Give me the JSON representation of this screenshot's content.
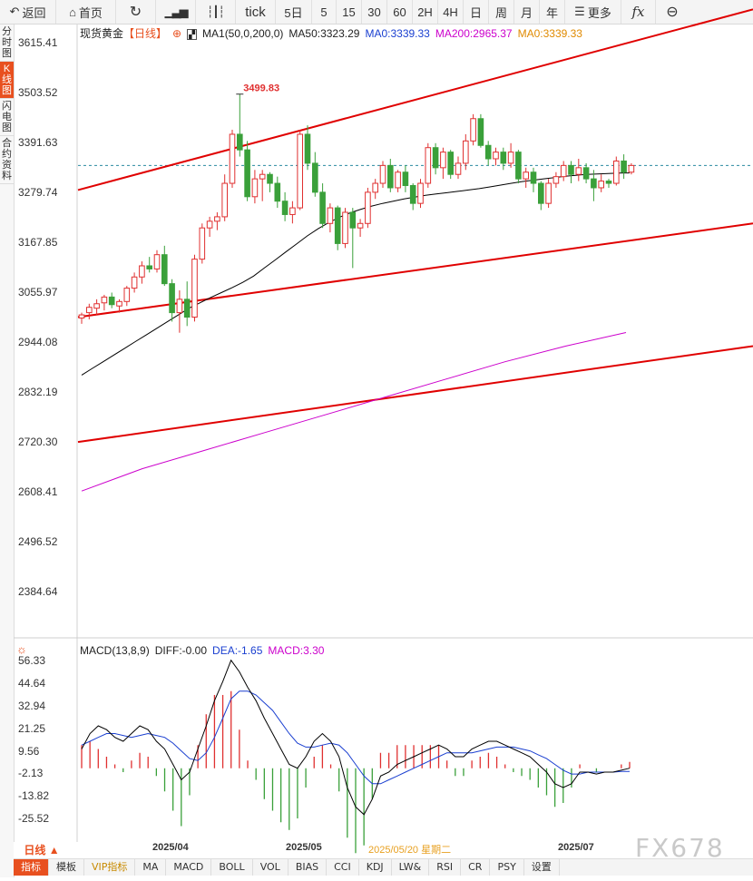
{
  "toolbar": {
    "back": "返回",
    "home": "首页",
    "tick": "tick",
    "periods": [
      "5日",
      "5",
      "15",
      "30",
      "60",
      "2H",
      "4H",
      "日",
      "周",
      "月",
      "年"
    ],
    "more": "更多"
  },
  "sidebar": [
    "分时图",
    "K线图",
    "闪电图",
    "合约资料"
  ],
  "legend": {
    "symbol": "现货黄金",
    "period": "【日线】",
    "ma1": "MA1(50,0,200,0)",
    "ma50": "MA50:3323.29",
    "ma0a": "MA0:3339.33",
    "ma200": "MA200:2965.37",
    "ma0b": "MA0:3339.33"
  },
  "colors": {
    "up": "#e03030",
    "down": "#3aa03a",
    "ma50": "#000000",
    "ma200": "#cc00cc",
    "channel": "#e00000",
    "dea": "#1a3fd0",
    "macd": "#cc00cc"
  },
  "price_axis": [
    "3615.41",
    "3503.52",
    "3391.63",
    "3279.74",
    "3167.85",
    "3055.97",
    "2944.08",
    "2832.19",
    "2720.30",
    "2608.41",
    "2496.52",
    "2384.64"
  ],
  "peak_label": "3499.83",
  "macd_legend": {
    "name": "MACD(13,8,9)",
    "diff": "DIFF:-0.00",
    "dea": "DEA:-1.65",
    "macd": "MACD:3.30"
  },
  "macd_axis": [
    "56.33",
    "44.64",
    "32.94",
    "21.25",
    "9.56",
    "-2.13",
    "-13.82",
    "-25.52"
  ],
  "x_labels": [
    "2025/04",
    "2025/05",
    "2025/05/20 星期二",
    "2025/07"
  ],
  "period_tab": "日线 ▲",
  "bottom_tabs": [
    "指标",
    "模板",
    "VIP指标",
    "MA",
    "MACD",
    "BOLL",
    "VOL",
    "BIAS",
    "CCI",
    "KDJ",
    "LW&",
    "RSI",
    "CR",
    "PSY",
    "设置"
  ],
  "watermark": "FX678",
  "chart_data": {
    "type": "candlestick",
    "title": "现货黄金 日线",
    "ylim": [
      2330,
      3660
    ],
    "candles": [
      [
        2998,
        3010,
        2985,
        3005
      ],
      [
        3010,
        3030,
        2995,
        3022
      ],
      [
        3020,
        3040,
        3005,
        3030
      ],
      [
        3032,
        3050,
        3015,
        3045
      ],
      [
        3045,
        3055,
        3020,
        3028
      ],
      [
        3025,
        3040,
        3010,
        3035
      ],
      [
        3035,
        3070,
        3025,
        3065
      ],
      [
        3065,
        3100,
        3055,
        3090
      ],
      [
        3090,
        3125,
        3075,
        3115
      ],
      [
        3115,
        3135,
        3100,
        3108
      ],
      [
        3108,
        3150,
        3100,
        3140
      ],
      [
        3140,
        3160,
        3070,
        3075
      ],
      [
        3075,
        3085,
        2990,
        3010
      ],
      [
        3010,
        3060,
        2965,
        3040
      ],
      [
        3040,
        3080,
        2980,
        3000
      ],
      [
        3000,
        3140,
        2990,
        3130
      ],
      [
        3130,
        3210,
        3120,
        3200
      ],
      [
        3200,
        3225,
        3180,
        3215
      ],
      [
        3215,
        3235,
        3195,
        3225
      ],
      [
        3225,
        3320,
        3215,
        3300
      ],
      [
        3300,
        3420,
        3290,
        3410
      ],
      [
        3410,
        3500,
        3360,
        3375
      ],
      [
        3375,
        3395,
        3260,
        3270
      ],
      [
        3270,
        3330,
        3255,
        3310
      ],
      [
        3310,
        3330,
        3260,
        3320
      ],
      [
        3320,
        3325,
        3280,
        3300
      ],
      [
        3300,
        3315,
        3245,
        3260
      ],
      [
        3260,
        3280,
        3215,
        3230
      ],
      [
        3230,
        3260,
        3210,
        3245
      ],
      [
        3245,
        3420,
        3240,
        3410
      ],
      [
        3410,
        3430,
        3330,
        3345
      ],
      [
        3345,
        3370,
        3270,
        3280
      ],
      [
        3280,
        3300,
        3200,
        3210
      ],
      [
        3210,
        3255,
        3190,
        3245
      ],
      [
        3245,
        3250,
        3150,
        3165
      ],
      [
        3165,
        3245,
        3155,
        3235
      ],
      [
        3235,
        3245,
        3110,
        3200
      ],
      [
        3200,
        3220,
        3180,
        3210
      ],
      [
        3210,
        3290,
        3200,
        3280
      ],
      [
        3280,
        3310,
        3265,
        3300
      ],
      [
        3300,
        3350,
        3290,
        3340
      ],
      [
        3340,
        3355,
        3280,
        3290
      ],
      [
        3290,
        3330,
        3280,
        3325
      ],
      [
        3325,
        3340,
        3280,
        3295
      ],
      [
        3295,
        3300,
        3240,
        3255
      ],
      [
        3255,
        3310,
        3245,
        3300
      ],
      [
        3300,
        3390,
        3290,
        3380
      ],
      [
        3380,
        3390,
        3320,
        3335
      ],
      [
        3335,
        3380,
        3310,
        3370
      ],
      [
        3370,
        3375,
        3310,
        3320
      ],
      [
        3320,
        3360,
        3310,
        3345
      ],
      [
        3345,
        3410,
        3330,
        3395
      ],
      [
        3395,
        3455,
        3385,
        3445
      ],
      [
        3445,
        3455,
        3380,
        3385
      ],
      [
        3385,
        3395,
        3340,
        3355
      ],
      [
        3355,
        3380,
        3340,
        3370
      ],
      [
        3370,
        3380,
        3330,
        3345
      ],
      [
        3345,
        3390,
        3335,
        3370
      ],
      [
        3370,
        3375,
        3300,
        3310
      ],
      [
        3310,
        3335,
        3290,
        3325
      ],
      [
        3325,
        3335,
        3280,
        3300
      ],
      [
        3300,
        3305,
        3240,
        3255
      ],
      [
        3255,
        3310,
        3245,
        3300
      ],
      [
        3300,
        3325,
        3290,
        3315
      ],
      [
        3315,
        3350,
        3305,
        3340
      ],
      [
        3340,
        3350,
        3300,
        3320
      ],
      [
        3320,
        3355,
        3305,
        3335
      ],
      [
        3335,
        3345,
        3300,
        3310
      ],
      [
        3310,
        3330,
        3260,
        3290
      ],
      [
        3290,
        3320,
        3280,
        3305
      ],
      [
        3305,
        3310,
        3290,
        3300
      ],
      [
        3300,
        3360,
        3295,
        3350
      ],
      [
        3350,
        3365,
        3310,
        3325
      ],
      [
        3325,
        3345,
        3320,
        3340
      ]
    ],
    "ma50": {
      "name": "MA50",
      "values": [
        2870,
        2885,
        2900,
        2915,
        2930,
        2945,
        2960,
        2975,
        2990,
        3005,
        3020,
        3032,
        3044,
        3055,
        3066,
        3078,
        3092,
        3110,
        3128,
        3146,
        3164,
        3182,
        3198,
        3212,
        3224,
        3234,
        3242,
        3249,
        3255,
        3260,
        3265,
        3269,
        3273,
        3276,
        3279,
        3282,
        3285,
        3288,
        3292,
        3296,
        3300,
        3304,
        3307,
        3310,
        3313,
        3316,
        3318,
        3320,
        3321,
        3322,
        3323,
        3323.29
      ]
    },
    "ma200": {
      "name": "MA200",
      "values": [
        2610,
        2660,
        2700,
        2740,
        2780,
        2820,
        2860,
        2900,
        2935,
        2965.37
      ]
    },
    "macd": {
      "diff": [
        10,
        18,
        22,
        20,
        16,
        14,
        18,
        22,
        20,
        14,
        10,
        2,
        -6,
        -2,
        10,
        22,
        35,
        45,
        56,
        50,
        42,
        35,
        26,
        18,
        10,
        2,
        0,
        6,
        14,
        18,
        14,
        6,
        -10,
        -20,
        -24,
        -16,
        -4,
        -2,
        2,
        4,
        6,
        8,
        10,
        12,
        10,
        6,
        6,
        10,
        12,
        14,
        14,
        12,
        10,
        8,
        6,
        2,
        -2,
        -8,
        -10,
        -8,
        -2,
        -2,
        -3,
        -2,
        -2,
        -1,
        0
      ],
      "dea": [
        12,
        14,
        16,
        18,
        18,
        17,
        16,
        17,
        18,
        17,
        16,
        13,
        9,
        5,
        4,
        8,
        16,
        26,
        36,
        40,
        40,
        38,
        34,
        30,
        24,
        18,
        13,
        11,
        11,
        12,
        13,
        12,
        8,
        2,
        -4,
        -8,
        -8,
        -6,
        -4,
        -2,
        0,
        2,
        4,
        6,
        8,
        8,
        8,
        8,
        9,
        10,
        11,
        11,
        11,
        10,
        9,
        7,
        5,
        2,
        -1,
        -3,
        -3,
        -2,
        -2,
        -2,
        -2,
        -1.65,
        -1.65
      ],
      "hist": [
        12,
        14,
        10,
        6,
        2,
        -2,
        4,
        8,
        6,
        -4,
        -12,
        -22,
        -30,
        -14,
        12,
        28,
        38,
        38,
        40,
        20,
        4,
        -6,
        -16,
        -22,
        -28,
        -32,
        -26,
        -10,
        6,
        12,
        2,
        -12,
        -36,
        -44,
        -40,
        -16,
        8,
        8,
        12,
        12,
        12,
        12,
        12,
        12,
        4,
        -4,
        -4,
        4,
        6,
        8,
        6,
        2,
        -2,
        -4,
        -6,
        -10,
        -14,
        -20,
        -18,
        -10,
        2,
        0,
        -2,
        0,
        0,
        2,
        3.3
      ]
    }
  }
}
